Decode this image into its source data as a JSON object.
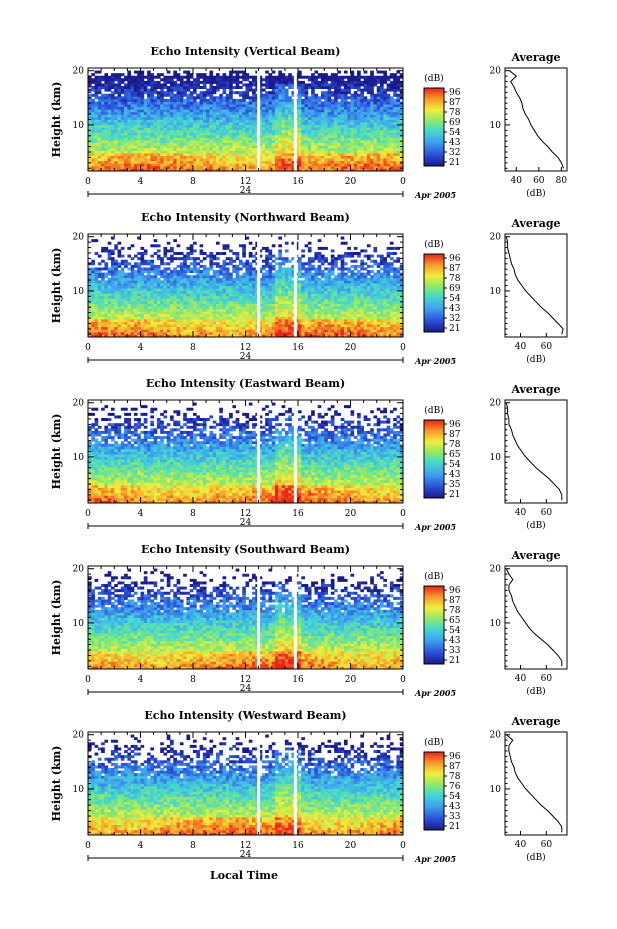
{
  "figure": {
    "xlabel": "Local Time",
    "date_label": "Apr 2005",
    "day_label": "24",
    "colorbar_unit": "(dB)",
    "colorbar_ticks": [
      "96",
      "87",
      "78",
      "69",
      "54",
      "43",
      "32",
      "21"
    ],
    "profile_title": "Average",
    "profile_xlabel": "(dB)"
  },
  "chart_data": [
    {
      "type": "heatmap",
      "title": "Echo Intensity (Vertical Beam)",
      "ylabel": "Height (km)",
      "xlabel": "",
      "x_ticks": [
        "0",
        "4",
        "8",
        "12",
        "16",
        "20",
        "0"
      ],
      "y_ticks": [
        "20",
        "10"
      ],
      "xlim": [
        0,
        24
      ],
      "ylim": [
        1.5,
        20.5
      ],
      "gaps_hours": [
        13.0,
        15.8
      ],
      "colorbar_ticks": [
        "96",
        "87",
        "78",
        "69",
        "54",
        "43",
        "32",
        "21"
      ],
      "profile": {
        "title": "Average",
        "xlabel": "(dB)",
        "x_ticks": [
          "40",
          "60",
          "80"
        ],
        "xlim": [
          30,
          85
        ],
        "height_km": [
          2,
          3,
          4,
          5,
          6,
          7,
          8,
          9,
          10,
          11,
          12,
          13,
          14,
          15,
          16,
          17,
          18,
          19,
          20
        ],
        "db": [
          82,
          80,
          77,
          72,
          68,
          63,
          59,
          56,
          53,
          51,
          48,
          46,
          45,
          43,
          40,
          38,
          35,
          40,
          34
        ]
      }
    },
    {
      "type": "heatmap",
      "title": "Echo Intensity (Northward Beam)",
      "ylabel": "Height (km)",
      "xlabel": "",
      "x_ticks": [
        "0",
        "4",
        "8",
        "12",
        "16",
        "20",
        "0"
      ],
      "y_ticks": [
        "20",
        "10"
      ],
      "xlim": [
        0,
        24
      ],
      "ylim": [
        1.5,
        20.5
      ],
      "gaps_hours": [
        13.0,
        15.8
      ],
      "colorbar_ticks": [
        "96",
        "87",
        "78",
        "69",
        "54",
        "43",
        "32",
        "21"
      ],
      "profile": {
        "title": "Average",
        "xlabel": "(dB)",
        "x_ticks": [
          "40",
          "60"
        ],
        "xlim": [
          28,
          76
        ],
        "height_km": [
          2,
          3,
          4,
          5,
          6,
          7,
          8,
          9,
          10,
          11,
          12,
          13,
          14,
          15,
          16,
          17,
          18,
          19,
          20
        ],
        "db": [
          72,
          73,
          69,
          65,
          61,
          56,
          52,
          48,
          44,
          41,
          38,
          36,
          35,
          33,
          32,
          31,
          30,
          30,
          29
        ]
      }
    },
    {
      "type": "heatmap",
      "title": "Echo Intensity (Eastward Beam)",
      "ylabel": "Height (km)",
      "xlabel": "",
      "x_ticks": [
        "0",
        "4",
        "8",
        "12",
        "16",
        "20",
        "0"
      ],
      "y_ticks": [
        "20",
        "10"
      ],
      "xlim": [
        0,
        24
      ],
      "ylim": [
        1.5,
        20.5
      ],
      "gaps_hours": [
        13.0,
        15.8
      ],
      "colorbar_ticks": [
        "96",
        "87",
        "78",
        "65",
        "54",
        "43",
        "35",
        "21"
      ],
      "profile": {
        "title": "Average",
        "xlabel": "(dB)",
        "x_ticks": [
          "40",
          "60"
        ],
        "xlim": [
          28,
          76
        ],
        "height_km": [
          2,
          3,
          4,
          5,
          6,
          7,
          8,
          9,
          10,
          11,
          12,
          13,
          14,
          15,
          16,
          17,
          18,
          19,
          20
        ],
        "db": [
          72,
          72,
          70,
          66,
          62,
          57,
          52,
          48,
          44,
          41,
          38,
          36,
          34,
          33,
          31,
          31,
          30,
          30,
          29
        ]
      }
    },
    {
      "type": "heatmap",
      "title": "Echo Intensity (Southward Beam)",
      "ylabel": "Height (km)",
      "xlabel": "",
      "x_ticks": [
        "0",
        "4",
        "8",
        "12",
        "16",
        "20",
        "0"
      ],
      "y_ticks": [
        "20",
        "10"
      ],
      "xlim": [
        0,
        24
      ],
      "ylim": [
        1.5,
        20.5
      ],
      "gaps_hours": [
        13.0,
        15.8
      ],
      "colorbar_ticks": [
        "96",
        "87",
        "78",
        "65",
        "54",
        "43",
        "33",
        "21"
      ],
      "profile": {
        "title": "Average",
        "xlabel": "(dB)",
        "x_ticks": [
          "40",
          "60"
        ],
        "xlim": [
          28,
          76
        ],
        "height_km": [
          2,
          3,
          4,
          5,
          6,
          7,
          8,
          9,
          10,
          11,
          12,
          13,
          14,
          15,
          16,
          17,
          18,
          19,
          20
        ],
        "db": [
          72,
          72,
          69,
          65,
          61,
          56,
          51,
          47,
          44,
          41,
          38,
          36,
          34,
          33,
          31,
          31,
          34,
          31,
          29
        ]
      }
    },
    {
      "type": "heatmap",
      "title": "Echo Intensity (Westward Beam)",
      "ylabel": "Height (km)",
      "xlabel": "Local Time",
      "x_ticks": [
        "0",
        "4",
        "8",
        "12",
        "16",
        "20",
        "0"
      ],
      "y_ticks": [
        "20",
        "10"
      ],
      "xlim": [
        0,
        24
      ],
      "ylim": [
        1.5,
        20.5
      ],
      "gaps_hours": [
        13.0,
        15.8
      ],
      "colorbar_ticks": [
        "96",
        "87",
        "78",
        "76",
        "54",
        "43",
        "33",
        "21"
      ],
      "profile": {
        "title": "Average",
        "xlabel": "(dB)",
        "x_ticks": [
          "40",
          "60"
        ],
        "xlim": [
          28,
          76
        ],
        "height_km": [
          2,
          3,
          4,
          5,
          6,
          7,
          8,
          9,
          10,
          11,
          12,
          13,
          14,
          15,
          16,
          17,
          18,
          19,
          20
        ],
        "db": [
          72,
          72,
          69,
          65,
          61,
          56,
          52,
          48,
          44,
          41,
          38,
          36,
          35,
          33,
          32,
          31,
          31,
          34,
          29
        ]
      }
    }
  ]
}
